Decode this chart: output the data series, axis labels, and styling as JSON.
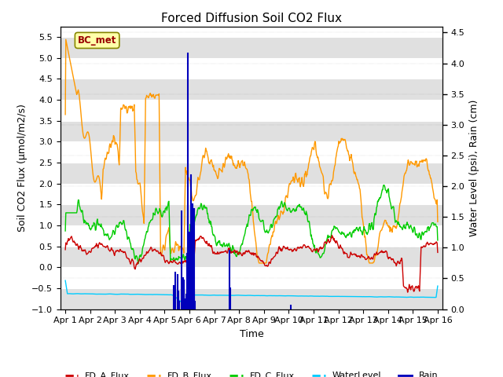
{
  "title": "Forced Diffusion Soil CO2 Flux",
  "xlabel": "Time",
  "ylabel_left": "Soil CO2 Flux (μmol/m2/s)",
  "ylabel_right": "Water Level (psi), Rain (cm)",
  "ylim_left": [
    -1.0,
    5.75
  ],
  "ylim_right": [
    0.0,
    4.6
  ],
  "yticks_left": [
    -1.0,
    -0.5,
    0.0,
    0.5,
    1.0,
    1.5,
    2.0,
    2.5,
    3.0,
    3.5,
    4.0,
    4.5,
    5.0,
    5.5
  ],
  "yticks_right": [
    0.0,
    0.5,
    1.0,
    1.5,
    2.0,
    2.5,
    3.0,
    3.5,
    4.0,
    4.5
  ],
  "xtick_labels": [
    "Apr 1",
    "Apr 2",
    "Apr 3",
    "Apr 4",
    "Apr 5",
    "Apr 6",
    "Apr 7",
    "Apr 8",
    "Apr 9",
    "Apr 10",
    "Apr 11",
    "Apr 12",
    "Apr 13",
    "Apr 14",
    "Apr 15",
    "Apr 16"
  ],
  "colors": {
    "FD_A_Flux": "#cc0000",
    "FD_B_Flux": "#ff9900",
    "FD_C_Flux": "#00cc00",
    "WaterLevel": "#00ccff",
    "Rain": "#0000bb"
  },
  "annotation_text": "BC_met",
  "annotation_color": "#990000",
  "annotation_bg": "#ffffaa",
  "annotation_border": "#888800",
  "band_color": "#e0e0e0",
  "n_points": 720
}
